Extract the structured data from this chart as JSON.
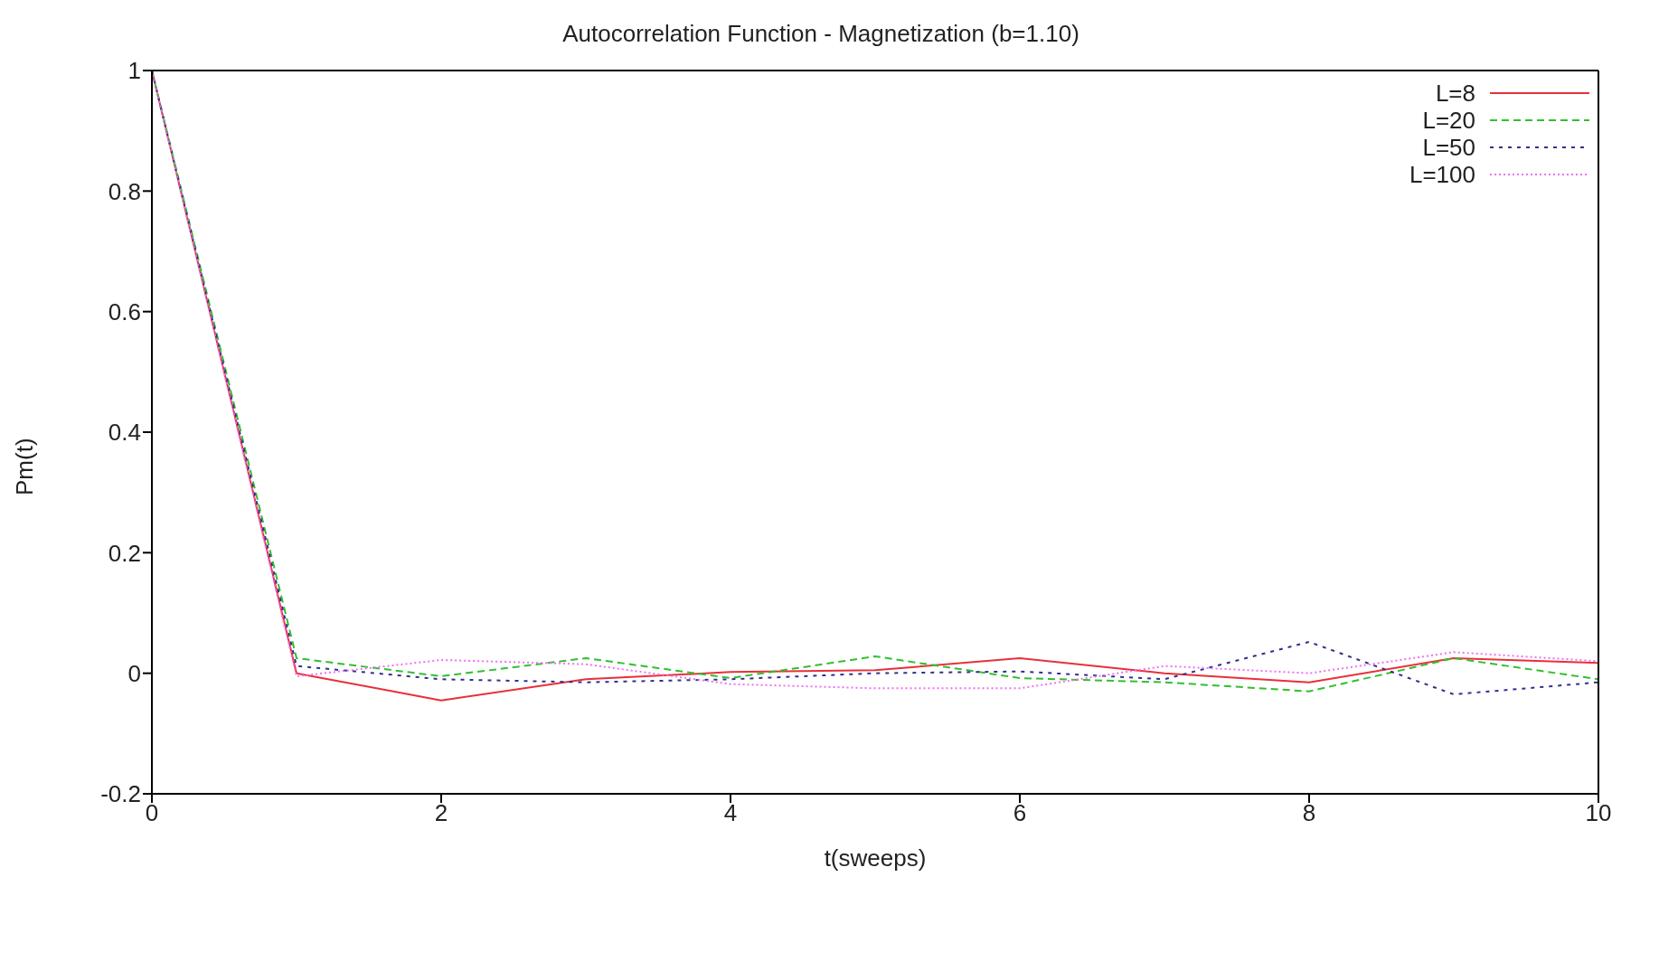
{
  "chart_data": {
    "type": "line",
    "title": "Autocorrelation Function - Magnetization (b=1.10)",
    "xlabel": "t(sweeps)",
    "ylabel": "Pm(t)",
    "x": [
      0,
      1,
      2,
      3,
      4,
      5,
      6,
      7,
      8,
      9,
      10
    ],
    "series": [
      {
        "name": "L=8",
        "color": "#e8303a",
        "line_style": "solid",
        "values": [
          1,
          0,
          -0.045,
          -0.01,
          0.002,
          0.005,
          0.025,
          0,
          -0.015,
          0.025,
          0.017
        ]
      },
      {
        "name": "L=20",
        "color": "#30c030",
        "line_style": "dashed",
        "values": [
          1,
          0.025,
          -0.005,
          0.025,
          -0.008,
          0.028,
          -0.008,
          -0.015,
          -0.03,
          0.025,
          -0.01
        ]
      },
      {
        "name": "L=50",
        "color": "#303090",
        "line_style": "dashed",
        "values": [
          1,
          0.012,
          -0.01,
          -0.015,
          -0.01,
          0,
          0.003,
          -0.01,
          0.052,
          -0.035,
          -0.015
        ]
      },
      {
        "name": "L=100",
        "color": "#f070f0",
        "line_style": "dotted",
        "values": [
          1,
          -0.005,
          0.022,
          0.015,
          -0.018,
          -0.025,
          -0.025,
          0.012,
          0,
          0.035,
          0.02
        ]
      }
    ],
    "xlim": [
      0,
      10
    ],
    "xticks": [
      0,
      2,
      4,
      6,
      8,
      10
    ],
    "ylim": [
      -0.2,
      1
    ],
    "yticks": [
      -0.2,
      0,
      0.2,
      0.4,
      0.6,
      0.8,
      1
    ],
    "grid": false,
    "legend": "top right",
    "marker": "none"
  }
}
